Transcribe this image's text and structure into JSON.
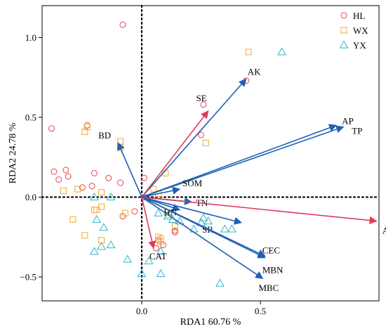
{
  "chart_data": {
    "type": "scatter",
    "subtype": "RDA biplot",
    "xlabel": "RDA1 60.76 %",
    "ylabel": "RDA2 24.78 %",
    "xlim": [
      -0.42,
      1.0
    ],
    "ylim": [
      -0.65,
      1.2
    ],
    "xticks": [
      0.0,
      0.5
    ],
    "xtick_labels": [
      "0.0",
      "0.5"
    ],
    "yticks": [
      -0.5,
      0.0,
      0.5,
      1.0
    ],
    "ytick_labels": [
      "−0.5",
      "0.0",
      "0.5",
      "1.0"
    ],
    "grid": false,
    "origin_lines": "dotted",
    "legend": {
      "position": "top-right",
      "entries": [
        {
          "label": "HL",
          "marker": "circle",
          "color": "#e8434f"
        },
        {
          "label": "WX",
          "marker": "square",
          "color": "#f0a92c"
        },
        {
          "label": "YX",
          "marker": "triangle",
          "color": "#2ab7c9"
        }
      ]
    },
    "series": [
      {
        "name": "HL",
        "marker": "circle",
        "color": "#e8434f",
        "points": [
          [
            -0.08,
            1.08
          ],
          [
            -0.38,
            0.43
          ],
          [
            -0.23,
            0.45
          ],
          [
            -0.37,
            0.16
          ],
          [
            -0.32,
            0.17
          ],
          [
            -0.31,
            0.13
          ],
          [
            -0.35,
            0.11
          ],
          [
            -0.2,
            0.15
          ],
          [
            -0.14,
            0.12
          ],
          [
            -0.25,
            0.06
          ],
          [
            -0.21,
            0.07
          ],
          [
            -0.09,
            0.09
          ],
          [
            0.01,
            0.12
          ],
          [
            0.01,
            0.0
          ],
          [
            -0.08,
            -0.12
          ],
          [
            -0.03,
            -0.09
          ],
          [
            0.07,
            -0.27
          ],
          [
            0.09,
            -0.3
          ],
          [
            0.06,
            -0.32
          ],
          [
            0.14,
            -0.21
          ],
          [
            0.14,
            -0.22
          ],
          [
            0.26,
            0.58
          ],
          [
            0.25,
            0.39
          ],
          [
            0.44,
            0.73
          ]
        ]
      },
      {
        "name": "WX",
        "marker": "square",
        "color": "#f0a92c",
        "points": [
          [
            0.45,
            0.91
          ],
          [
            -0.24,
            0.41
          ],
          [
            -0.23,
            0.44
          ],
          [
            -0.09,
            0.35
          ],
          [
            -0.09,
            0.31
          ],
          [
            0.27,
            0.34
          ],
          [
            -0.33,
            0.04
          ],
          [
            -0.27,
            0.05
          ],
          [
            -0.17,
            0.03
          ],
          [
            -0.17,
            -0.06
          ],
          [
            -0.2,
            -0.08
          ],
          [
            -0.19,
            -0.08
          ],
          [
            -0.29,
            -0.14
          ],
          [
            -0.24,
            -0.24
          ],
          [
            -0.17,
            -0.27
          ],
          [
            -0.07,
            -0.1
          ],
          [
            0.05,
            0.05
          ],
          [
            0.07,
            0.02
          ],
          [
            0.1,
            0.15
          ],
          [
            0.14,
            -0.18
          ],
          [
            0.08,
            -0.26
          ],
          [
            0.07,
            -0.25
          ],
          [
            0.08,
            -0.28
          ],
          [
            0.11,
            -0.11
          ]
        ]
      },
      {
        "name": "YX",
        "marker": "triangle",
        "color": "#2ab7c9",
        "points": [
          [
            0.59,
            0.91
          ],
          [
            -0.13,
            0.0
          ],
          [
            -0.2,
            0.0
          ],
          [
            -0.19,
            -0.14
          ],
          [
            -0.16,
            -0.19
          ],
          [
            -0.13,
            -0.3
          ],
          [
            -0.17,
            -0.31
          ],
          [
            -0.2,
            -0.34
          ],
          [
            -0.06,
            -0.39
          ],
          [
            0.03,
            -0.4
          ],
          [
            0.0,
            -0.48
          ],
          [
            0.08,
            -0.48
          ],
          [
            0.33,
            -0.54
          ],
          [
            0.07,
            -0.1
          ],
          [
            0.11,
            -0.12
          ],
          [
            0.13,
            -0.14
          ],
          [
            0.16,
            -0.15
          ],
          [
            0.08,
            -0.34
          ],
          [
            0.26,
            -0.13
          ],
          [
            0.25,
            -0.16
          ],
          [
            0.28,
            -0.15
          ],
          [
            0.22,
            -0.2
          ],
          [
            0.35,
            -0.2
          ],
          [
            0.38,
            -0.2
          ]
        ]
      }
    ],
    "vectors": [
      {
        "label": "AK",
        "x": 0.44,
        "y": 0.74,
        "color": "#1f5fb4"
      },
      {
        "label": "SE",
        "x": 0.28,
        "y": 0.54,
        "color": "#e23a5c"
      },
      {
        "label": "AP",
        "x": 0.82,
        "y": 0.45,
        "color": "#1f5fb4"
      },
      {
        "label": "TP",
        "x": 0.85,
        "y": 0.44,
        "color": "#1f5fb4"
      },
      {
        "label": "BD",
        "x": -0.1,
        "y": 0.34,
        "color": "#1f5fb4"
      },
      {
        "label": "SOM",
        "x": 0.16,
        "y": 0.05,
        "color": "#1f5fb4"
      },
      {
        "label": "TN",
        "x": 0.21,
        "y": -0.03,
        "color": "#1f5fb4"
      },
      {
        "label": "HN",
        "x": 0.16,
        "y": -0.08,
        "color": "#1f5fb4"
      },
      {
        "label": "SR",
        "x": 0.42,
        "y": -0.16,
        "color": "#1f5fb4"
      },
      {
        "label": "APA",
        "x": 0.99,
        "y": -0.15,
        "color": "#e23a5c"
      },
      {
        "label": "CEC",
        "x": 0.52,
        "y": -0.37,
        "color": "#1f5fb4"
      },
      {
        "label": "MBN",
        "x": 0.52,
        "y": -0.38,
        "color": "#1f5fb4"
      },
      {
        "label": "MBC",
        "x": 0.51,
        "y": -0.51,
        "color": "#1f5fb4"
      },
      {
        "label": "CAT",
        "x": 0.05,
        "y": -0.32,
        "color": "#e23a5c"
      }
    ]
  }
}
